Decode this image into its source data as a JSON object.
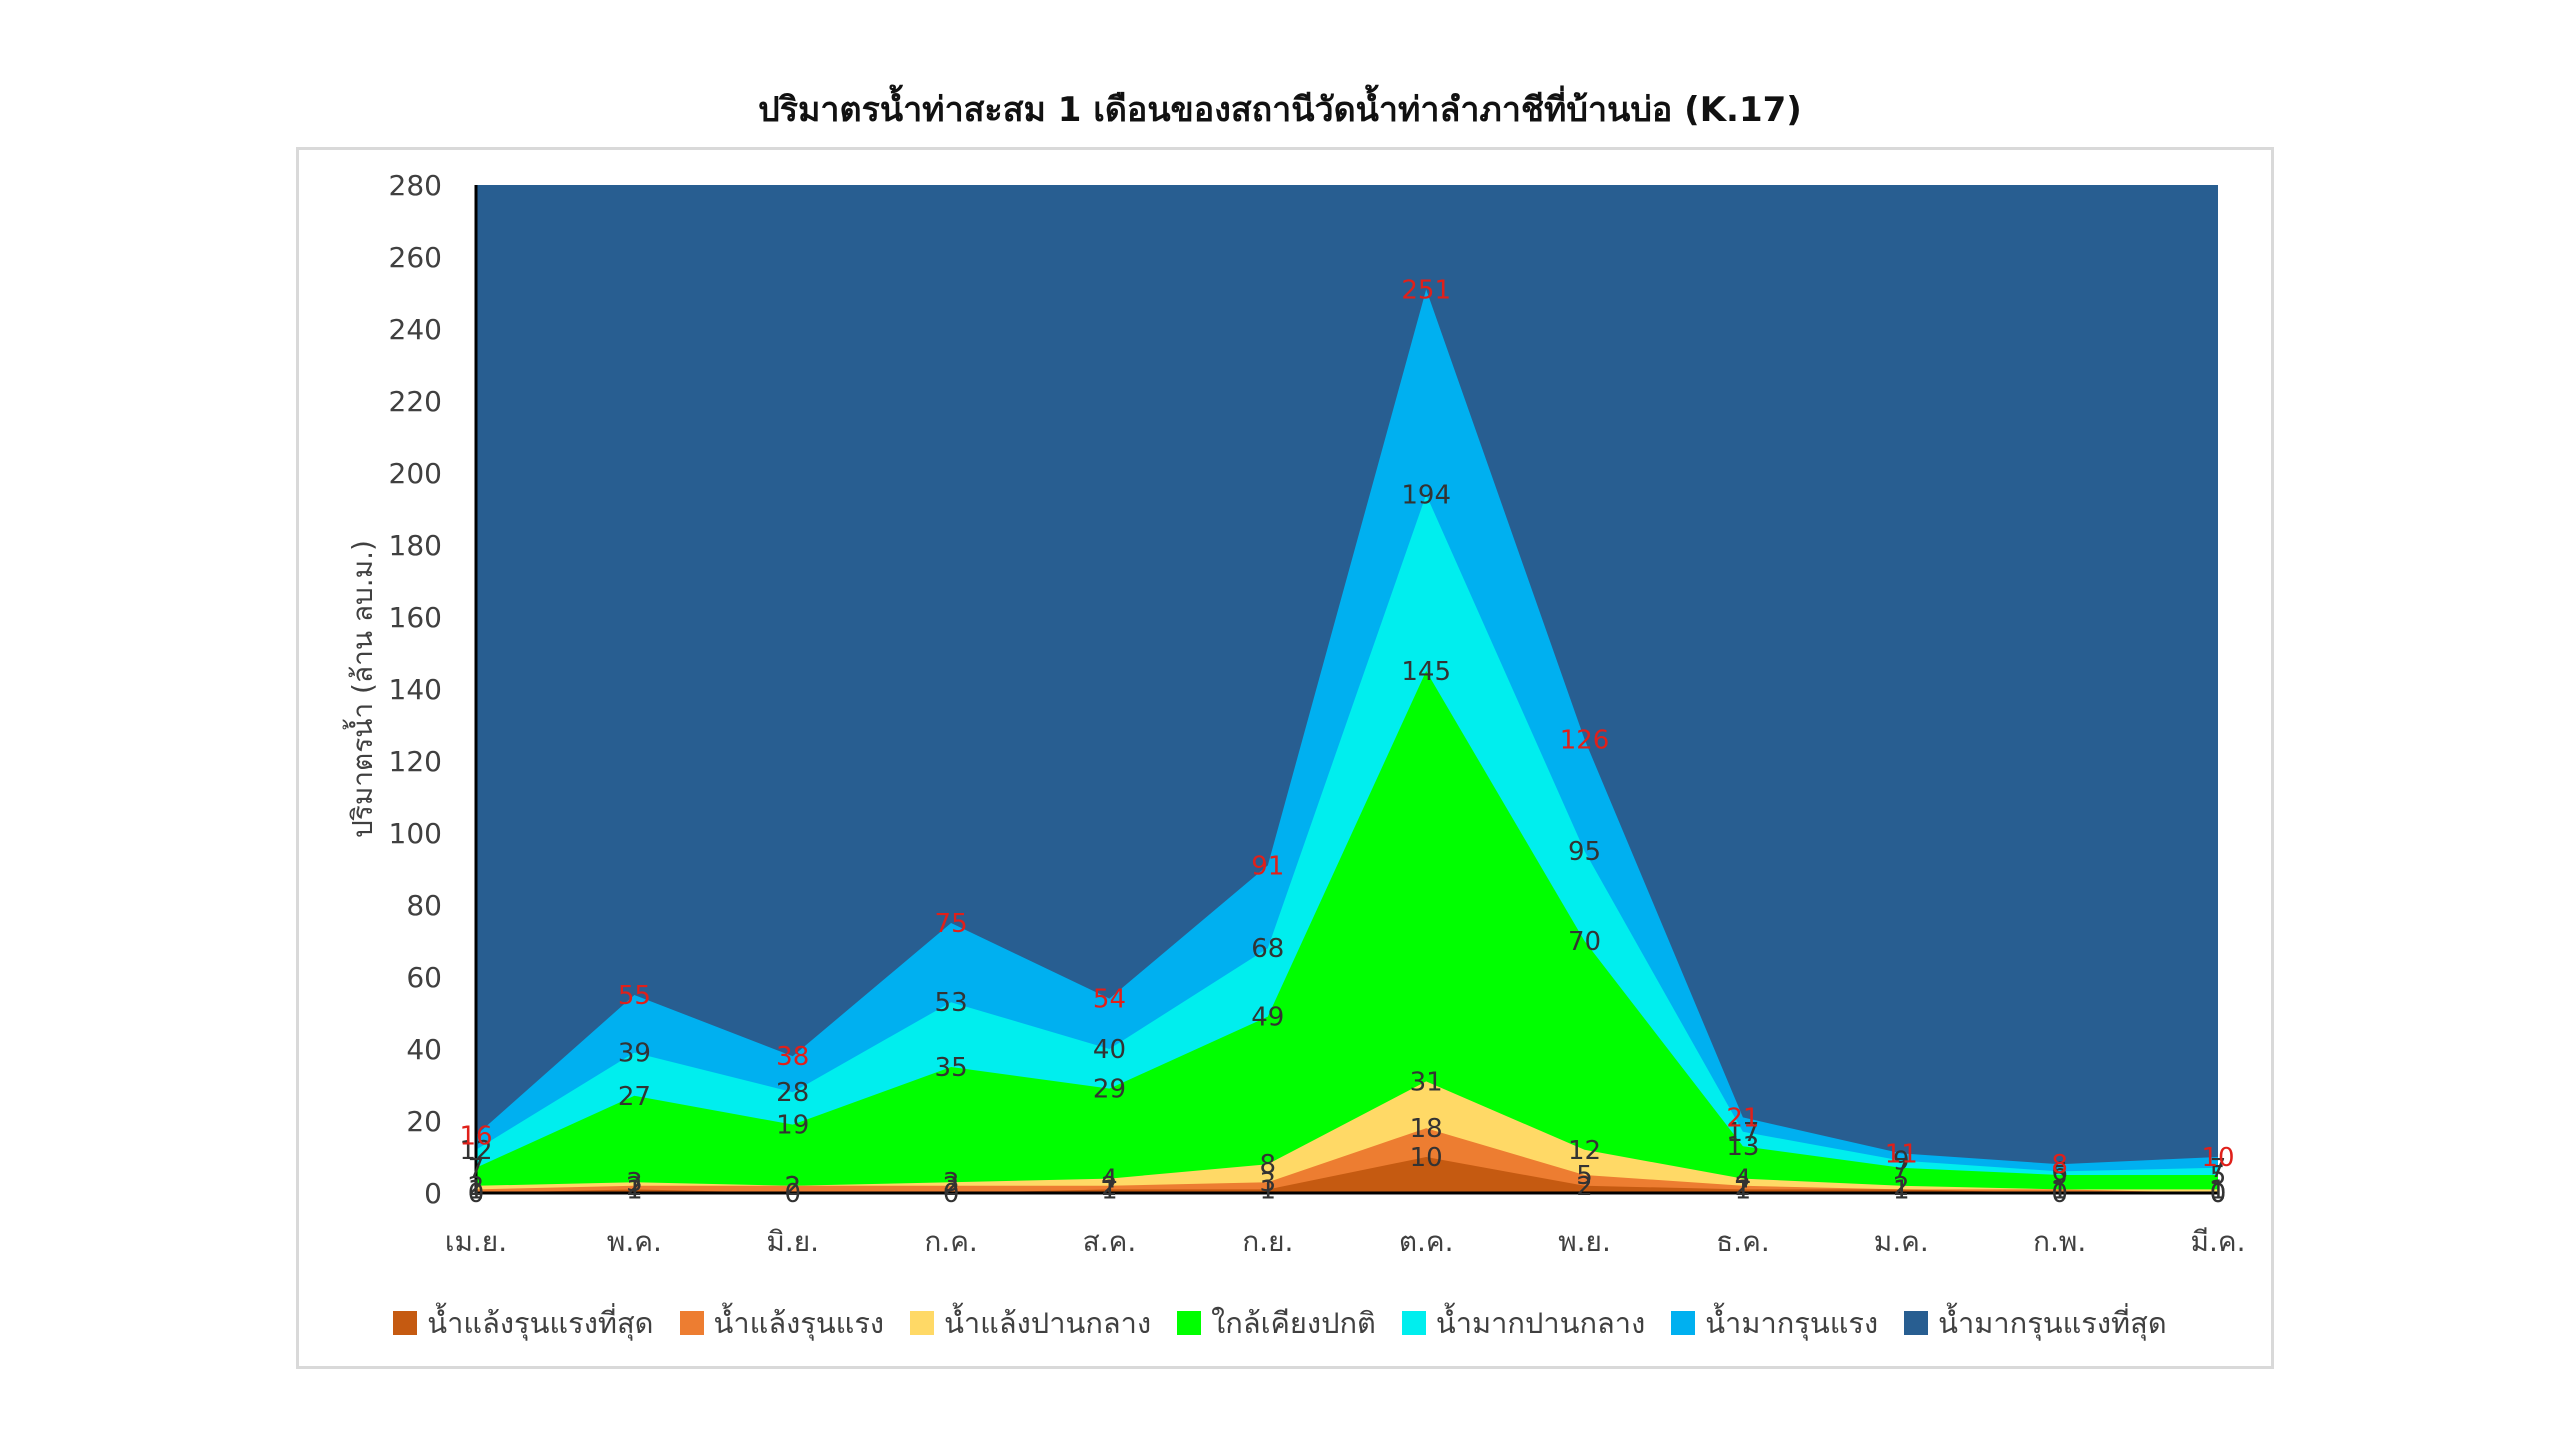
{
  "chart_data": {
    "type": "area",
    "title": "ปริมาตรน้ำท่าสะสม 1 เดือนของสถานีวัดน้ำท่าลำภาชีที่บ้านบ่อ (K.17)",
    "xlabel": "",
    "ylabel": "ปริมาตรน้ำ (ล้าน ลบ.ม.)",
    "ylim": [
      0,
      280
    ],
    "y_ticks": [
      "0",
      "20",
      "40",
      "60",
      "80",
      "100",
      "120",
      "140",
      "160",
      "180",
      "200",
      "220",
      "240",
      "260",
      "280"
    ],
    "categories": [
      "เม.ย.",
      "พ.ค.",
      "มิ.ย.",
      "ก.ค.",
      "ส.ค.",
      "ก.ย.",
      "ต.ค.",
      "พ.ย.",
      "ธ.ค.",
      "ม.ค.",
      "ก.พ.",
      "มี.ค."
    ],
    "grid": false,
    "legend_position": "bottom",
    "series": [
      {
        "name": "น้ำแล้งรุนแรงที่สุด",
        "color": "#c55a11",
        "values": [
          0,
          1,
          0,
          0,
          1,
          1,
          10,
          2,
          1,
          1,
          0,
          0
        ]
      },
      {
        "name": "น้ำแล้งรุนแรง",
        "color": "#ed7d31",
        "values": [
          1,
          2,
          2,
          2,
          2,
          3,
          18,
          5,
          2,
          1,
          1,
          0
        ]
      },
      {
        "name": "น้ำแล้งปานกลาง",
        "color": "#ffd966",
        "values": [
          2,
          3,
          2,
          3,
          4,
          8,
          31,
          12,
          4,
          2,
          1,
          1
        ]
      },
      {
        "name": "ใกล้เคียงปกติ",
        "color": "#00ff00",
        "values": [
          7,
          27,
          19,
          35,
          29,
          49,
          145,
          70,
          13,
          7,
          5,
          5
        ]
      },
      {
        "name": "น้ำมากปานกลาง",
        "color": "#00eeee",
        "values": [
          12,
          39,
          28,
          53,
          40,
          68,
          194,
          95,
          17,
          9,
          6,
          7
        ]
      },
      {
        "name": "น้ำมากรุนแรง",
        "color": "#00b0f0",
        "values": [
          16,
          55,
          38,
          75,
          54,
          91,
          251,
          126,
          21,
          11,
          8,
          10
        ]
      },
      {
        "name": "น้ำมากรุนแรงที่สุด",
        "color": "#285e91",
        "values": [
          280,
          280,
          280,
          280,
          280,
          280,
          280,
          280,
          280,
          280,
          280,
          280
        ]
      }
    ],
    "total_series_label": "น้ำมากรุนแรง",
    "total_label_color": "#e0201a"
  }
}
